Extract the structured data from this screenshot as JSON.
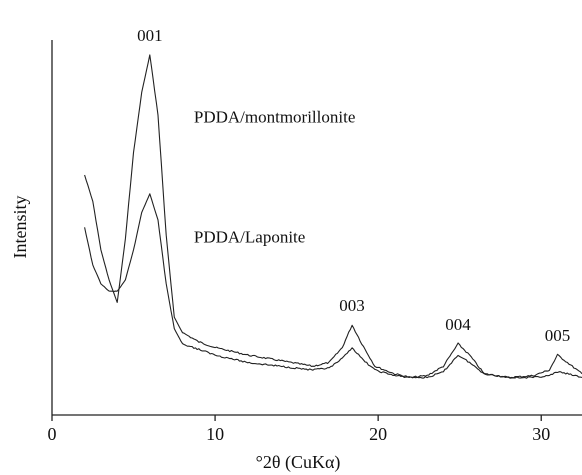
{
  "chart_data": {
    "type": "line",
    "title": "",
    "xlabel": "°2θ (CuKα)",
    "ylabel": "Intensity",
    "xlim": [
      0,
      32.5
    ],
    "ylim": [
      0,
      100
    ],
    "xticks": [
      0,
      10,
      20,
      30
    ],
    "xtick_labels": [
      "0",
      "10",
      "20",
      "30"
    ],
    "y_ticks_shown": false,
    "grid": false,
    "legend": "none (series labelled directly on the plot)",
    "annotations": [
      {
        "text": "001",
        "x": 6.0
      },
      {
        "text": "003",
        "x": 18.4
      },
      {
        "text": "004",
        "x": 24.9
      },
      {
        "text": "005",
        "x": 31.0
      }
    ],
    "series": [
      {
        "name": "PDDA/montmorillonite",
        "label_x": 8.7,
        "label_y": 78,
        "x": [
          2.0,
          2.5,
          3.0,
          3.5,
          4.0,
          4.5,
          5.0,
          5.5,
          6.0,
          6.5,
          7.0,
          7.5,
          8.0,
          9.0,
          10.0,
          12.0,
          14.0,
          16.0,
          17.0,
          17.8,
          18.4,
          19.0,
          19.8,
          21.0,
          22.0,
          23.0,
          24.0,
          24.9,
          25.6,
          26.5,
          28.0,
          29.5,
          30.5,
          31.0,
          31.6,
          32.5
        ],
        "y": [
          64,
          57,
          44,
          36,
          30,
          47,
          70,
          86,
          96,
          80,
          48,
          26,
          22,
          19.5,
          18,
          16,
          14.5,
          13,
          14,
          18,
          24,
          19,
          13,
          11,
          10,
          10.5,
          13,
          19,
          16,
          11,
          10,
          10.5,
          12,
          16,
          14,
          11
        ]
      },
      {
        "name": "PDDA/Laponite",
        "label_x": 8.7,
        "label_y": 46,
        "x": [
          2.0,
          2.5,
          3.0,
          3.5,
          4.0,
          4.5,
          5.0,
          5.5,
          6.0,
          6.5,
          7.0,
          7.5,
          8.0,
          9.0,
          10.0,
          12.0,
          14.0,
          16.0,
          17.0,
          17.8,
          18.4,
          19.0,
          19.8,
          21.0,
          22.0,
          23.0,
          24.0,
          24.9,
          25.6,
          26.5,
          28.0,
          29.5,
          30.5,
          31.0,
          31.6,
          32.5
        ],
        "y": [
          50,
          40,
          35,
          33,
          33,
          36,
          44,
          54,
          59,
          52,
          35,
          23,
          19,
          17.5,
          16,
          14,
          13,
          12,
          12.5,
          15,
          18,
          15,
          12,
          10.5,
          10,
          10,
          11.5,
          16,
          14,
          11,
          10,
          10,
          10.5,
          11.5,
          11,
          10
        ]
      }
    ]
  }
}
